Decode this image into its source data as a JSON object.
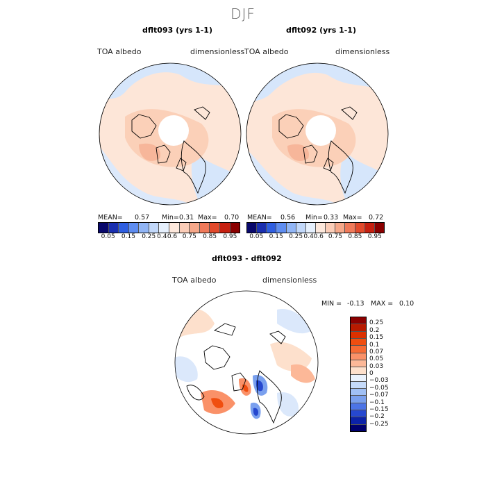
{
  "season": "DJF",
  "panels": [
    {
      "title": "dflt093 (yrs 1-1)",
      "variable": "TOA albedo",
      "units": "dimensionless",
      "mean_label": "MEAN=",
      "mean": "0.57",
      "min_label": "Min=",
      "min": "0.31",
      "max_label": "Max=",
      "max": "0.70"
    },
    {
      "title": "dflt092 (yrs 1-1)",
      "variable": "TOA albedo",
      "units": "dimensionless",
      "mean_label": "MEAN=",
      "mean": "0.56",
      "min_label": "Min=",
      "min": "0.33",
      "max_label": "Max=",
      "max": "0.72"
    }
  ],
  "abs_colorbar": {
    "ticks": [
      "0.05",
      "0.15",
      "0.25",
      "0.4",
      "0.6",
      "0.75",
      "0.85",
      "0.95"
    ],
    "colors": [
      "#08086b",
      "#1a2fb0",
      "#2f5ee0",
      "#5f8df0",
      "#91b5f5",
      "#c2d8fa",
      "#e6f0fd",
      "#fde8dc",
      "#fbcdb8",
      "#f6a88a",
      "#f07a5a",
      "#e24a2c",
      "#c62010",
      "#8a0000"
    ]
  },
  "diff_panel": {
    "title": "dflt093 - dflt092",
    "variable": "TOA albedo",
    "units": "dimensionless",
    "min_label": "MIN =",
    "min": "-0.13",
    "max_label": "MAX =",
    "max": "0.10"
  },
  "diff_colorbar": {
    "ticks": [
      "0.25",
      "0.2",
      "0.15",
      "0.1",
      "0.07",
      "0.05",
      "0.03",
      "0",
      "−0.03",
      "−0.05",
      "−0.07",
      "−0.1",
      "−0.15",
      "−0.2",
      "−0.25"
    ],
    "colors": [
      "#8b0000",
      "#b81a00",
      "#dc3000",
      "#f04e10",
      "#f76b34",
      "#fa9168",
      "#fcb898",
      "#fde0cc",
      "#eaf2fd",
      "#c6dbfa",
      "#a0c0f5",
      "#7aa0ee",
      "#4c74e6",
      "#2648cf",
      "#0c22a8",
      "#00006e"
    ]
  }
}
